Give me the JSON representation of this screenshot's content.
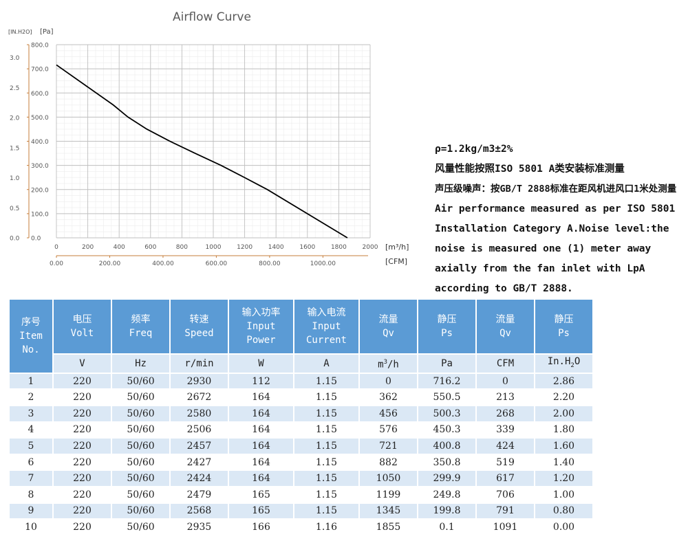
{
  "chart_data": {
    "type": "line",
    "title": "Airflow Curve",
    "left_axis_outer_label": "[IN.H2O]",
    "left_axis_inner_label": "[Pa]",
    "x_primary_label": "[m³/h]",
    "x_secondary_label": "[CFM]",
    "x_primary_ticks": [
      "0",
      "200",
      "400",
      "600",
      "800",
      "1000",
      "1200",
      "1400",
      "1600",
      "1800",
      "2000"
    ],
    "x_secondary_ticks": [
      "0.00",
      "200.00",
      "400.00",
      "600.00",
      "800.00",
      "1000.00"
    ],
    "y_pa_ticks": [
      "0.0",
      "100.0",
      "200.0",
      "300.0",
      "400.0",
      "500.0",
      "600.0",
      "700.0",
      "800.0"
    ],
    "y_inh2o_ticks": [
      "0.0",
      "0.5",
      "1.0",
      "1.5",
      "2.0",
      "2.5",
      "3.0"
    ],
    "xlim": [
      0,
      2000
    ],
    "ylim": [
      0,
      800
    ],
    "grid": true,
    "series": [
      {
        "x": [
          0,
          362,
          456,
          576,
          721,
          882,
          1050,
          1199,
          1345,
          1855
        ],
        "y": [
          716.2,
          550.5,
          500.3,
          450.3,
          400.8,
          350.8,
          299.9,
          249.8,
          199.8,
          0.1
        ]
      }
    ],
    "line_color": "#000000"
  },
  "notes": {
    "line1": "ρ=1.2kg/m3±2%",
    "line2": "风量性能按照ISO 5801 A类安装标准测量",
    "line3": "声压级噪声：按GB/T 2888标准在距风机进风口1米处测量",
    "line4": "Air performance measured as per ISO 5801 Installation Category A.Noise level:the noise is measured one (1) meter away axially from the fan inlet with LpA according to GB/T 2888."
  },
  "table": {
    "headers": [
      "序号\nItem\nNo.",
      "电压\nVolt",
      "频率\nFreq",
      "转速\nSpeed",
      "输入功率\nInput\nPower",
      "输入电流\nInput\nCurrent",
      "流量\nQv",
      "静压\nPs",
      "流量\nQv",
      "静压\nPs"
    ],
    "units": [
      "V",
      "Hz",
      "r/min",
      "W",
      "A",
      "m3/h",
      "Pa",
      "CFM",
      "In.H2O"
    ],
    "rows": [
      [
        "1",
        "220",
        "50/60",
        "2930",
        "112",
        "1.15",
        "0",
        "716.2",
        "0",
        "2.86"
      ],
      [
        "2",
        "220",
        "50/60",
        "2672",
        "164",
        "1.15",
        "362",
        "550.5",
        "213",
        "2.20"
      ],
      [
        "3",
        "220",
        "50/60",
        "2580",
        "164",
        "1.15",
        "456",
        "500.3",
        "268",
        "2.00"
      ],
      [
        "4",
        "220",
        "50/60",
        "2506",
        "164",
        "1.15",
        "576",
        "450.3",
        "339",
        "1.80"
      ],
      [
        "5",
        "220",
        "50/60",
        "2457",
        "164",
        "1.15",
        "721",
        "400.8",
        "424",
        "1.60"
      ],
      [
        "6",
        "220",
        "50/60",
        "2427",
        "164",
        "1.15",
        "882",
        "350.8",
        "519",
        "1.40"
      ],
      [
        "7",
        "220",
        "50/60",
        "2424",
        "164",
        "1.15",
        "1050",
        "299.9",
        "617",
        "1.20"
      ],
      [
        "8",
        "220",
        "50/60",
        "2479",
        "165",
        "1.15",
        "1199",
        "249.8",
        "706",
        "1.00"
      ],
      [
        "9",
        "220",
        "50/60",
        "2568",
        "165",
        "1.15",
        "1345",
        "199.8",
        "791",
        "0.80"
      ],
      [
        "10",
        "220",
        "50/60",
        "2935",
        "166",
        "1.16",
        "1855",
        "0.1",
        "1091",
        "0.00"
      ]
    ]
  },
  "colors": {
    "header_bg": "#5b9bd5",
    "row_alt_bg": "#dbe8f5",
    "pa_axis_color": "#c67d3a",
    "grid_color": "#d0d0d0"
  }
}
